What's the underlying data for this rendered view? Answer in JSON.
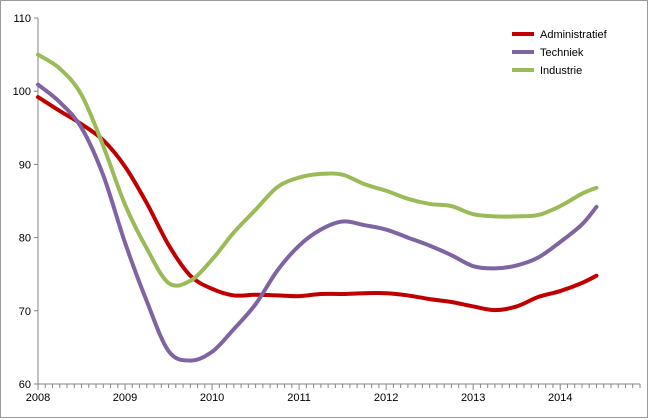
{
  "chart_data": {
    "type": "line",
    "title": "",
    "xlabel": "",
    "ylabel": "",
    "ylim": [
      60,
      110
    ],
    "y_ticks": [
      60,
      70,
      80,
      90,
      100,
      110
    ],
    "x_tick_labels": [
      "2008",
      "2009",
      "2010",
      "2011",
      "2012",
      "2013",
      "2014"
    ],
    "x_range": [
      "2008-01",
      "2014-06"
    ],
    "grid": false,
    "legend_position": "top-right",
    "x": [
      "2008-01",
      "2008-04",
      "2008-07",
      "2008-10",
      "2009-01",
      "2009-04",
      "2009-07",
      "2009-10",
      "2010-01",
      "2010-04",
      "2010-07",
      "2010-10",
      "2011-01",
      "2011-04",
      "2011-07",
      "2011-10",
      "2012-01",
      "2012-04",
      "2012-07",
      "2012-10",
      "2013-01",
      "2013-04",
      "2013-07",
      "2013-10",
      "2014-01",
      "2014-04",
      "2014-06"
    ],
    "series": [
      {
        "name": "Administratief",
        "color": "#c00000",
        "values": [
          99.2,
          97.3,
          95.5,
          93.3,
          89.7,
          84.7,
          79.0,
          74.8,
          73.0,
          72.1,
          72.2,
          72.1,
          72.0,
          72.3,
          72.3,
          72.4,
          72.4,
          72.1,
          71.6,
          71.2,
          70.6,
          70.1,
          70.6,
          71.9,
          72.7,
          73.8,
          74.8
        ]
      },
      {
        "name": "Techniek",
        "color": "#8064a2",
        "values": [
          100.9,
          98.5,
          95.0,
          88.5,
          79.3,
          71.3,
          64.5,
          63.2,
          64.4,
          67.5,
          70.9,
          75.5,
          78.9,
          81.1,
          82.2,
          81.7,
          81.1,
          80.0,
          78.9,
          77.6,
          76.1,
          75.8,
          76.2,
          77.3,
          79.4,
          81.8,
          84.2
        ]
      },
      {
        "name": "Industrie",
        "color": "#9bbb59",
        "values": [
          105.0,
          103.1,
          99.5,
          92.5,
          84.5,
          78.5,
          73.8,
          74.1,
          77.0,
          80.7,
          83.8,
          86.9,
          88.2,
          88.7,
          88.6,
          87.3,
          86.4,
          85.3,
          84.6,
          84.3,
          83.2,
          82.9,
          82.9,
          83.1,
          84.3,
          86.0,
          86.8
        ]
      }
    ]
  }
}
